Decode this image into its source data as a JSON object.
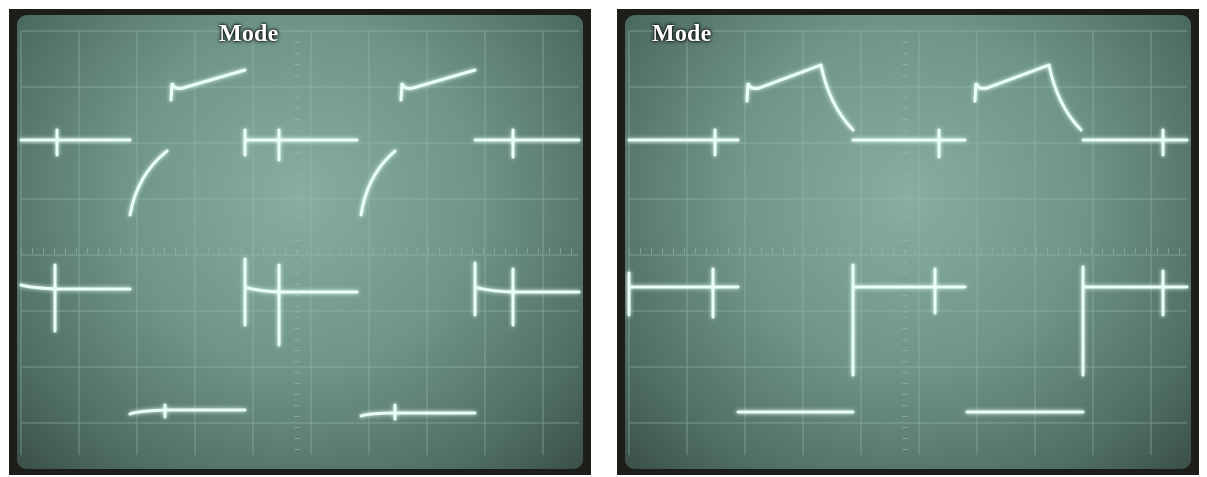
{
  "panels": [
    {
      "title": "Mode"
    },
    {
      "title": "Mode"
    }
  ]
}
